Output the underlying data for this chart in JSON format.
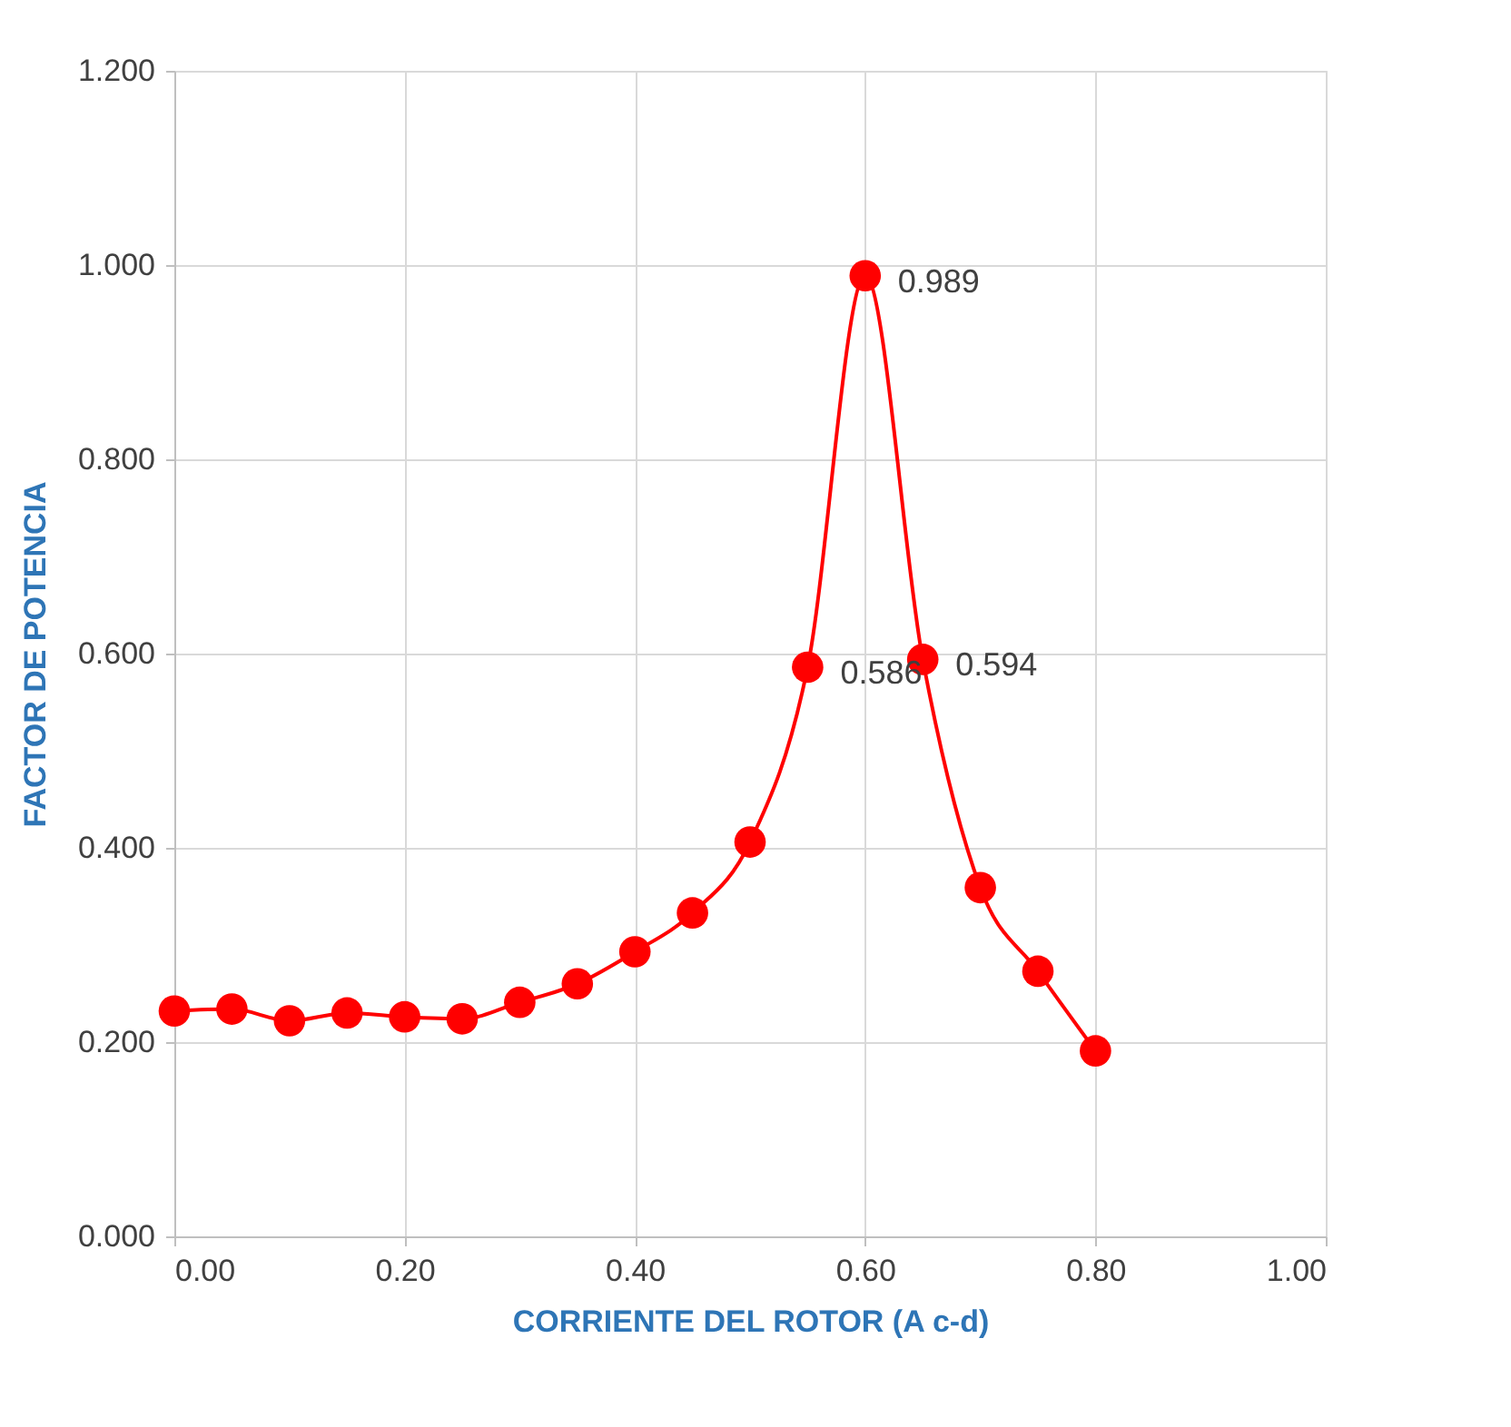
{
  "chart_data": {
    "type": "line",
    "xlabel": "CORRIENTE DEL ROTOR (A c-d)",
    "ylabel": "FACTOR DE POTENCIA",
    "x": [
      0.0,
      0.05,
      0.1,
      0.15,
      0.2,
      0.25,
      0.3,
      0.35,
      0.4,
      0.45,
      0.5,
      0.55,
      0.6,
      0.65,
      0.7,
      0.75,
      0.8
    ],
    "series": [
      {
        "color": "#ff0000",
        "values": [
          0.232,
          0.234,
          0.222,
          0.23,
          0.226,
          0.224,
          0.241,
          0.26,
          0.293,
          0.333,
          0.406,
          0.586,
          0.989,
          0.594,
          0.359,
          0.273,
          0.191
        ],
        "value_labels": [
          null,
          null,
          null,
          null,
          null,
          null,
          null,
          null,
          null,
          null,
          null,
          "0.586",
          "0.989",
          "0.594",
          null,
          null,
          null
        ]
      }
    ],
    "xlim": [
      0,
      1
    ],
    "ylim": [
      0,
      1.2
    ],
    "xticks": [
      {
        "value": 0,
        "label": "0.00"
      },
      {
        "value": 0.2,
        "label": "0.20"
      },
      {
        "value": 0.4,
        "label": "0.40"
      },
      {
        "value": 0.6,
        "label": "0.60"
      },
      {
        "value": 0.8,
        "label": "0.80"
      },
      {
        "value": 1,
        "label": "1.00"
      }
    ],
    "yticks": [
      {
        "value": 0,
        "label": "0.000"
      },
      {
        "value": 0.2,
        "label": "0.200"
      },
      {
        "value": 0.4,
        "label": "0.400"
      },
      {
        "value": 0.6,
        "label": "0.600"
      },
      {
        "value": 0.8,
        "label": "0.800"
      },
      {
        "value": 1,
        "label": "1.000"
      },
      {
        "value": 1.2,
        "label": "1.200"
      }
    ],
    "grid": true,
    "marker": "circle",
    "line_style": "solid"
  }
}
